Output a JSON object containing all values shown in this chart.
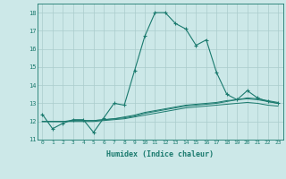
{
  "xlabel": "Humidex (Indice chaleur)",
  "x_values": [
    0,
    1,
    2,
    3,
    4,
    5,
    6,
    7,
    8,
    9,
    10,
    11,
    12,
    13,
    14,
    15,
    16,
    17,
    18,
    19,
    20,
    21,
    22,
    23
  ],
  "line1": [
    12.4,
    11.6,
    11.9,
    12.1,
    12.1,
    11.4,
    12.2,
    13.0,
    12.9,
    14.8,
    16.7,
    18.0,
    18.0,
    17.4,
    17.1,
    16.2,
    16.5,
    14.7,
    13.5,
    13.2,
    13.7,
    13.3,
    13.1,
    13.0
  ],
  "line2": [
    12.0,
    12.0,
    12.0,
    12.05,
    12.05,
    12.05,
    12.1,
    12.15,
    12.2,
    12.3,
    12.45,
    12.55,
    12.65,
    12.75,
    12.85,
    12.9,
    12.95,
    13.0,
    13.1,
    13.2,
    13.3,
    13.25,
    13.15,
    13.05
  ],
  "line3": [
    12.0,
    12.0,
    12.0,
    12.05,
    12.05,
    12.05,
    12.1,
    12.15,
    12.25,
    12.35,
    12.5,
    12.6,
    12.7,
    12.8,
    12.9,
    12.95,
    13.0,
    13.05,
    13.15,
    13.2,
    13.25,
    13.2,
    13.1,
    13.0
  ],
  "line4": [
    12.0,
    12.0,
    12.0,
    12.0,
    12.0,
    12.0,
    12.05,
    12.1,
    12.15,
    12.25,
    12.35,
    12.45,
    12.55,
    12.65,
    12.75,
    12.8,
    12.85,
    12.9,
    12.95,
    13.0,
    13.05,
    13.0,
    12.9,
    12.85
  ],
  "line_color": "#1a7a6e",
  "bg_color": "#cce8e8",
  "grid_color": "#b8d8d8",
  "ylim": [
    11,
    18.5
  ],
  "xlim": [
    -0.5,
    23.5
  ],
  "yticks": [
    11,
    12,
    13,
    14,
    15,
    16,
    17,
    18
  ],
  "xticks": [
    0,
    1,
    2,
    3,
    4,
    5,
    6,
    7,
    8,
    9,
    10,
    11,
    12,
    13,
    14,
    15,
    16,
    17,
    18,
    19,
    20,
    21,
    22,
    23
  ]
}
